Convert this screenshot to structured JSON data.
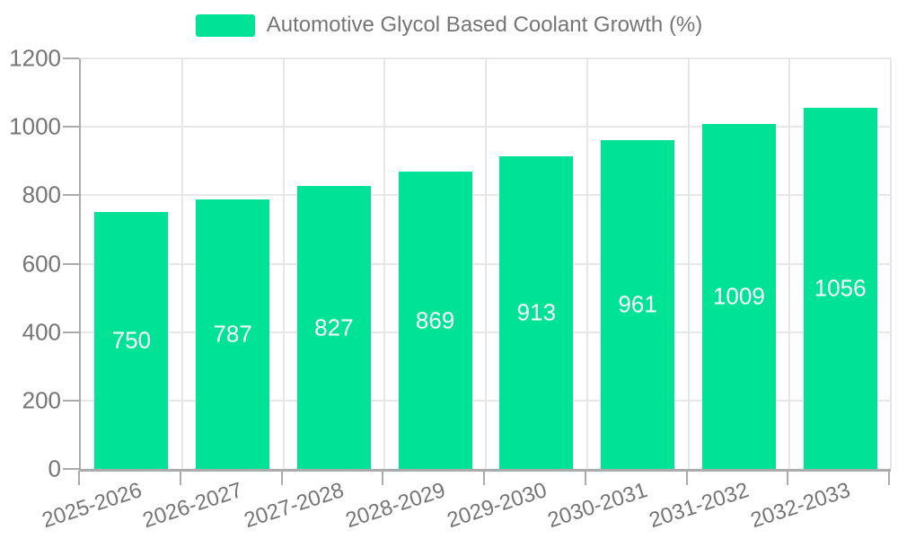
{
  "legend": {
    "series_label": "Automotive Glycol Based Coolant Growth (%)"
  },
  "chart_data": {
    "type": "bar",
    "title": "Automotive Glycol Based Coolant Growth (%)",
    "categories": [
      "2025-2026",
      "2026-2027",
      "2027-2028",
      "2028-2029",
      "2029-2030",
      "2030-2031",
      "2031-2032",
      "2032-2033"
    ],
    "values": [
      750,
      787,
      827,
      869,
      913,
      961,
      1009,
      1056
    ],
    "xlabel": "",
    "ylabel": "",
    "ylim": [
      0,
      1200
    ],
    "yticks": [
      0,
      200,
      400,
      600,
      800,
      1000,
      1200
    ],
    "grid": true,
    "legend_position": "top",
    "colors": {
      "bar": "#00E396",
      "grid": "#e7e7e7",
      "axis": "#ababab",
      "text": "#757575",
      "value_text": "#ffffff",
      "background": "#ffffff"
    }
  }
}
